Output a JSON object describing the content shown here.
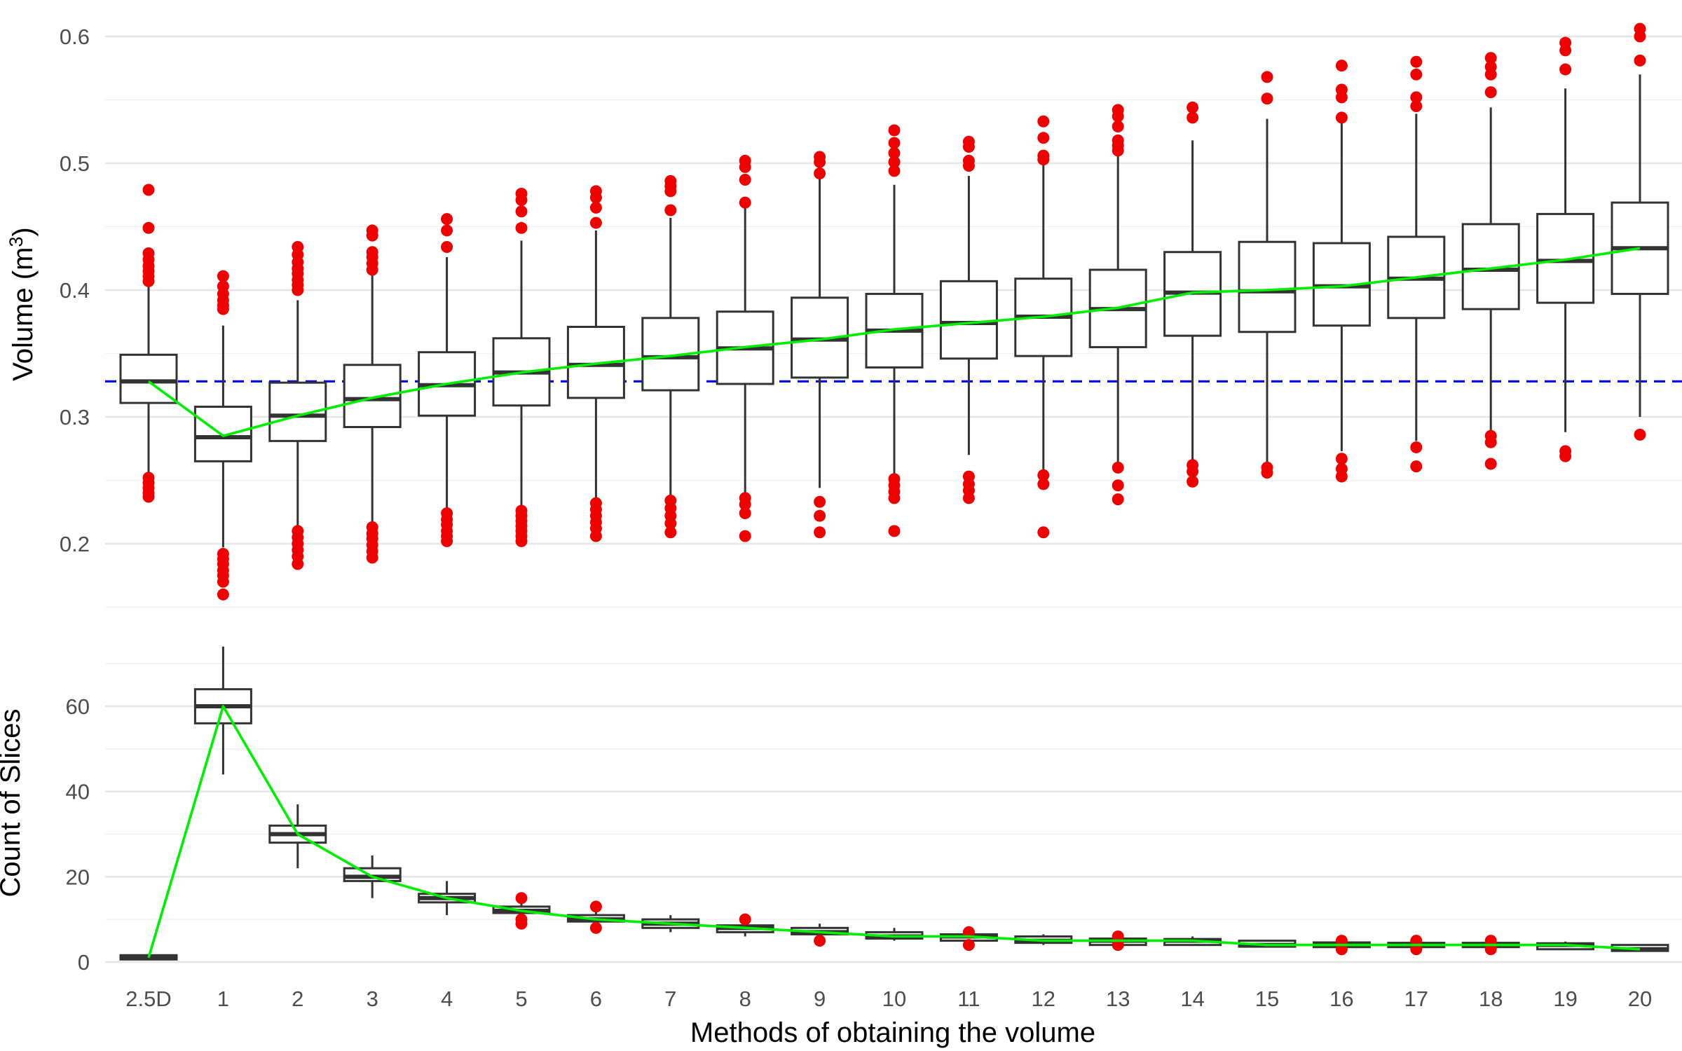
{
  "chart_data": [
    {
      "type": "box",
      "panel": "top",
      "ylabel": "Volume (m",
      "ylabel_sup": "3",
      "ylabel_close": ")",
      "xlabel": "",
      "ylim": [
        0.15,
        0.61
      ],
      "y_ticks": [
        "0.2",
        "0.3",
        "0.4",
        "0.5",
        "0.6"
      ],
      "y_tick_values": [
        0.2,
        0.3,
        0.4,
        0.5,
        0.6
      ],
      "grid": true,
      "reference_line": {
        "value": 0.328,
        "color": "#0000ee",
        "style": "dashed"
      },
      "trend_color": "#00ee00",
      "outlier_color": "#ee0000",
      "categories": [
        "2.5D",
        "1",
        "2",
        "3",
        "4",
        "5",
        "6",
        "7",
        "8",
        "9",
        "10",
        "11",
        "12",
        "13",
        "14",
        "15",
        "16",
        "17",
        "18",
        "19",
        "20"
      ],
      "boxes": [
        {
          "q1": 0.311,
          "median": 0.328,
          "q3": 0.349,
          "lower": 0.254,
          "upper": 0.404,
          "mean": 0.328,
          "outliers": [
            0.479,
            0.449,
            0.429,
            0.424,
            0.419,
            0.415,
            0.411,
            0.407,
            0.252,
            0.248,
            0.244,
            0.24,
            0.237
          ]
        },
        {
          "q1": 0.265,
          "median": 0.284,
          "q3": 0.308,
          "lower": 0.197,
          "upper": 0.372,
          "mean": 0.285,
          "outliers": [
            0.411,
            0.403,
            0.397,
            0.392,
            0.388,
            0.385,
            0.192,
            0.188,
            0.184,
            0.179,
            0.175,
            0.17,
            0.16
          ]
        },
        {
          "q1": 0.281,
          "median": 0.301,
          "q3": 0.327,
          "lower": 0.212,
          "upper": 0.392,
          "mean": 0.301,
          "outliers": [
            0.434,
            0.428,
            0.422,
            0.417,
            0.413,
            0.408,
            0.404,
            0.4,
            0.21,
            0.205,
            0.2,
            0.195,
            0.19,
            0.184
          ]
        },
        {
          "q1": 0.292,
          "median": 0.314,
          "q3": 0.341,
          "lower": 0.215,
          "upper": 0.414,
          "mean": 0.315,
          "outliers": [
            0.447,
            0.443,
            0.43,
            0.426,
            0.421,
            0.416,
            0.213,
            0.208,
            0.204,
            0.199,
            0.194,
            0.189
          ]
        },
        {
          "q1": 0.301,
          "median": 0.325,
          "q3": 0.351,
          "lower": 0.226,
          "upper": 0.426,
          "mean": 0.326,
          "outliers": [
            0.456,
            0.447,
            0.434,
            0.224,
            0.219,
            0.215,
            0.21,
            0.206,
            0.202
          ]
        },
        {
          "q1": 0.309,
          "median": 0.335,
          "q3": 0.362,
          "lower": 0.228,
          "upper": 0.439,
          "mean": 0.335,
          "outliers": [
            0.476,
            0.471,
            0.462,
            0.449,
            0.226,
            0.222,
            0.218,
            0.214,
            0.21,
            0.206,
            0.202
          ]
        },
        {
          "q1": 0.315,
          "median": 0.341,
          "q3": 0.371,
          "lower": 0.234,
          "upper": 0.447,
          "mean": 0.342,
          "outliers": [
            0.478,
            0.473,
            0.465,
            0.453,
            0.232,
            0.227,
            0.222,
            0.217,
            0.212,
            0.206
          ]
        },
        {
          "q1": 0.321,
          "median": 0.347,
          "q3": 0.378,
          "lower": 0.236,
          "upper": 0.457,
          "mean": 0.348,
          "outliers": [
            0.486,
            0.482,
            0.478,
            0.463,
            0.234,
            0.228,
            0.222,
            0.216,
            0.209
          ]
        },
        {
          "q1": 0.326,
          "median": 0.354,
          "q3": 0.383,
          "lower": 0.238,
          "upper": 0.467,
          "mean": 0.355,
          "outliers": [
            0.502,
            0.497,
            0.487,
            0.469,
            0.236,
            0.231,
            0.224,
            0.206
          ]
        },
        {
          "q1": 0.331,
          "median": 0.361,
          "q3": 0.394,
          "lower": 0.244,
          "upper": 0.489,
          "mean": 0.361,
          "outliers": [
            0.505,
            0.501,
            0.492,
            0.233,
            0.222,
            0.209
          ]
        },
        {
          "q1": 0.339,
          "median": 0.368,
          "q3": 0.397,
          "lower": 0.253,
          "upper": 0.483,
          "mean": 0.369,
          "outliers": [
            0.526,
            0.516,
            0.508,
            0.501,
            0.494,
            0.251,
            0.246,
            0.241,
            0.236,
            0.21
          ]
        },
        {
          "q1": 0.346,
          "median": 0.374,
          "q3": 0.407,
          "lower": 0.27,
          "upper": 0.49,
          "mean": 0.374,
          "outliers": [
            0.517,
            0.513,
            0.502,
            0.498,
            0.253,
            0.247,
            0.242,
            0.236
          ]
        },
        {
          "q1": 0.348,
          "median": 0.379,
          "q3": 0.409,
          "lower": 0.257,
          "upper": 0.5,
          "mean": 0.379,
          "outliers": [
            0.533,
            0.52,
            0.506,
            0.503,
            0.254,
            0.247,
            0.209
          ]
        },
        {
          "q1": 0.355,
          "median": 0.385,
          "q3": 0.416,
          "lower": 0.263,
          "upper": 0.507,
          "mean": 0.386,
          "outliers": [
            0.542,
            0.537,
            0.529,
            0.518,
            0.514,
            0.51,
            0.26,
            0.246,
            0.235
          ]
        },
        {
          "q1": 0.364,
          "median": 0.398,
          "q3": 0.43,
          "lower": 0.265,
          "upper": 0.518,
          "mean": 0.398,
          "outliers": [
            0.544,
            0.536,
            0.262,
            0.257,
            0.249
          ]
        },
        {
          "q1": 0.367,
          "median": 0.399,
          "q3": 0.438,
          "lower": 0.262,
          "upper": 0.535,
          "mean": 0.4,
          "outliers": [
            0.568,
            0.551,
            0.26,
            0.256
          ]
        },
        {
          "q1": 0.372,
          "median": 0.403,
          "q3": 0.437,
          "lower": 0.273,
          "upper": 0.533,
          "mean": 0.403,
          "outliers": [
            0.577,
            0.558,
            0.552,
            0.536,
            0.267,
            0.259,
            0.253
          ]
        },
        {
          "q1": 0.378,
          "median": 0.409,
          "q3": 0.442,
          "lower": 0.281,
          "upper": 0.539,
          "mean": 0.41,
          "outliers": [
            0.58,
            0.57,
            0.552,
            0.545,
            0.276,
            0.261
          ]
        },
        {
          "q1": 0.385,
          "median": 0.416,
          "q3": 0.452,
          "lower": 0.287,
          "upper": 0.544,
          "mean": 0.417,
          "outliers": [
            0.583,
            0.576,
            0.57,
            0.556,
            0.285,
            0.28,
            0.263
          ]
        },
        {
          "q1": 0.39,
          "median": 0.423,
          "q3": 0.46,
          "lower": 0.288,
          "upper": 0.559,
          "mean": 0.424,
          "outliers": [
            0.595,
            0.589,
            0.574,
            0.273,
            0.269
          ]
        },
        {
          "q1": 0.397,
          "median": 0.433,
          "q3": 0.469,
          "lower": 0.3,
          "upper": 0.57,
          "mean": 0.433,
          "outliers": [
            0.606,
            0.6,
            0.581,
            0.286
          ]
        }
      ]
    },
    {
      "type": "box",
      "panel": "bottom",
      "ylabel": "Count of Slices",
      "xlabel": "Methods of obtaining the volume",
      "ylim": [
        -2,
        70
      ],
      "y_ticks": [
        "0",
        "20",
        "40",
        "60"
      ],
      "y_tick_values": [
        0,
        20,
        40,
        60
      ],
      "grid": true,
      "trend_color": "#00ee00",
      "outlier_color": "#ee0000",
      "categories": [
        "2.5D",
        "1",
        "2",
        "3",
        "4",
        "5",
        "6",
        "7",
        "8",
        "9",
        "10",
        "11",
        "12",
        "13",
        "14",
        "15",
        "16",
        "17",
        "18",
        "19",
        "20"
      ],
      "boxes": [
        {
          "q1": 0.6,
          "median": 1,
          "q3": 1.6,
          "lower": 0.6,
          "upper": 1.6,
          "mean": 1,
          "outliers": []
        },
        {
          "q1": 56,
          "median": 60,
          "q3": 64,
          "lower": 44,
          "upper": 74,
          "mean": 60,
          "outliers": []
        },
        {
          "q1": 28,
          "median": 30,
          "q3": 32,
          "lower": 22,
          "upper": 37,
          "mean": 30,
          "outliers": []
        },
        {
          "q1": 19,
          "median": 20,
          "q3": 22,
          "lower": 15,
          "upper": 25,
          "mean": 20,
          "outliers": []
        },
        {
          "q1": 14,
          "median": 15,
          "q3": 16,
          "lower": 11,
          "upper": 19,
          "mean": 15,
          "outliers": []
        },
        {
          "q1": 11.5,
          "median": 12,
          "q3": 13,
          "lower": 10,
          "upper": 14,
          "mean": 12,
          "outliers": [
            15,
            10,
            9
          ]
        },
        {
          "q1": 9.5,
          "median": 10,
          "q3": 11,
          "lower": 9,
          "upper": 12,
          "mean": 10,
          "outliers": [
            13,
            8
          ]
        },
        {
          "q1": 8,
          "median": 9,
          "q3": 10,
          "lower": 7,
          "upper": 11,
          "mean": 9,
          "outliers": []
        },
        {
          "q1": 7,
          "median": 8,
          "q3": 8.6,
          "lower": 6,
          "upper": 9,
          "mean": 8,
          "outliers": [
            10
          ]
        },
        {
          "q1": 6.5,
          "median": 7,
          "q3": 8,
          "lower": 6,
          "upper": 9,
          "mean": 7,
          "outliers": [
            5
          ]
        },
        {
          "q1": 5.5,
          "median": 6,
          "q3": 7,
          "lower": 5,
          "upper": 8,
          "mean": 6,
          "outliers": []
        },
        {
          "q1": 5,
          "median": 6,
          "q3": 6.5,
          "lower": 5,
          "upper": 7,
          "mean": 6,
          "outliers": [
            7,
            4
          ]
        },
        {
          "q1": 4.5,
          "median": 5,
          "q3": 6,
          "lower": 4,
          "upper": 6.5,
          "mean": 5,
          "outliers": []
        },
        {
          "q1": 4,
          "median": 5,
          "q3": 5.5,
          "lower": 4,
          "upper": 6,
          "mean": 5,
          "outliers": [
            6,
            4
          ]
        },
        {
          "q1": 4,
          "median": 5,
          "q3": 5.4,
          "lower": 4,
          "upper": 6,
          "mean": 5,
          "outliers": []
        },
        {
          "q1": 3.6,
          "median": 4,
          "q3": 5,
          "lower": 3.5,
          "upper": 5.2,
          "mean": 4,
          "outliers": []
        },
        {
          "q1": 3.5,
          "median": 4,
          "q3": 4.6,
          "lower": 3,
          "upper": 5,
          "mean": 4,
          "outliers": [
            5,
            3
          ]
        },
        {
          "q1": 3.5,
          "median": 4,
          "q3": 4.5,
          "lower": 3,
          "upper": 5,
          "mean": 4,
          "outliers": [
            5,
            3
          ]
        },
        {
          "q1": 3.5,
          "median": 4,
          "q3": 4.5,
          "lower": 3,
          "upper": 5,
          "mean": 4,
          "outliers": [
            5,
            3
          ]
        },
        {
          "q1": 3,
          "median": 4,
          "q3": 4.4,
          "lower": 3,
          "upper": 4.8,
          "mean": 4,
          "outliers": []
        },
        {
          "q1": 2.6,
          "median": 3,
          "q3": 4,
          "lower": 2.5,
          "upper": 4.2,
          "mean": 3,
          "outliers": []
        }
      ]
    }
  ]
}
